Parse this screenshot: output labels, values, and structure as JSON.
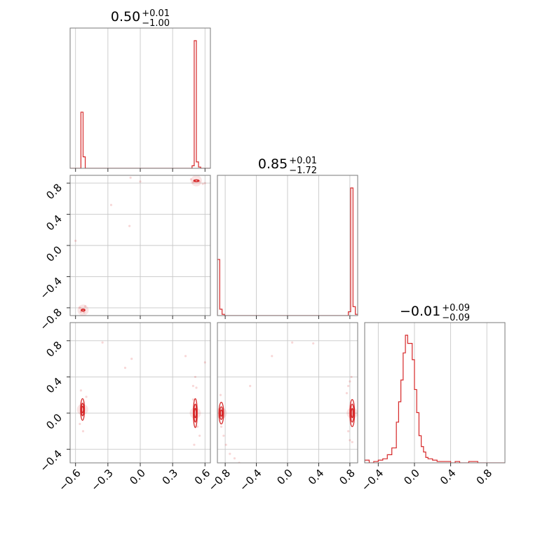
{
  "colors": {
    "series": "#d62728",
    "grid": "#c8c8c8",
    "frame": "#7a7a7a"
  },
  "chart_data": {
    "type": "corner",
    "parameters": [
      {
        "title": {
          "value": "0.50",
          "plus": "+0.01",
          "minus": "−1.00"
        },
        "axis_range": [
          -0.65,
          0.65
        ],
        "ticks": [
          -0.6,
          -0.3,
          0.0,
          0.3,
          0.6
        ],
        "tick_labels": [
          "−0.6",
          "−0.3",
          "0.0",
          "0.3",
          "0.6"
        ],
        "histogram": {
          "edges": [
            -0.57,
            -0.55,
            -0.53,
            -0.51,
            0.46,
            0.48,
            0.5,
            0.52,
            0.54,
            0.56
          ],
          "counts": [
            0,
            0.44,
            0.09,
            0,
            0,
            0.02,
            1.0,
            0.05,
            0.01
          ]
        }
      },
      {
        "title": {
          "value": "0.85",
          "plus": "+0.01",
          "minus": "−1.72"
        },
        "axis_range": [
          -0.9,
          0.9
        ],
        "ticks": [
          -0.8,
          -0.4,
          0.0,
          0.4,
          0.8
        ],
        "tick_labels": [
          "−0.8",
          "−0.4",
          "0.0",
          "0.4",
          "0.8"
        ],
        "histogram": {
          "edges": [
            -0.9,
            -0.87,
            -0.84,
            -0.81,
            -0.78,
            0.78,
            0.81,
            0.84,
            0.87,
            0.9
          ],
          "counts": [
            0.44,
            0.05,
            0.01,
            0,
            0,
            0.03,
            1.0,
            0.07,
            0.01
          ]
        }
      },
      {
        "title": {
          "value": "−0.01",
          "plus": "+0.09",
          "minus": "−0.09"
        },
        "axis_range": [
          -0.55,
          1.0
        ],
        "ticks": [
          -0.4,
          0.0,
          0.4,
          0.8
        ],
        "tick_labels": [
          "−0.4",
          "0.0",
          "0.4",
          "0.8"
        ],
        "y_only_ticks": [
          -0.4,
          0.0,
          0.4,
          0.8
        ],
        "histogram": {
          "edges": [
            -0.55,
            -0.5,
            -0.45,
            -0.4,
            -0.35,
            -0.3,
            -0.25,
            -0.2,
            -0.175,
            -0.15,
            -0.125,
            -0.1,
            -0.075,
            -0.05,
            -0.025,
            0.0,
            0.025,
            0.05,
            0.075,
            0.1,
            0.125,
            0.15,
            0.2,
            0.25,
            0.3,
            0.4,
            0.45,
            0.5,
            0.6,
            0.7,
            1.0
          ],
          "counts": [
            0.02,
            0.0,
            0.01,
            0.02,
            0.03,
            0.06,
            0.11,
            0.3,
            0.45,
            0.61,
            0.81,
            0.94,
            0.88,
            0.88,
            0.76,
            0.54,
            0.37,
            0.2,
            0.12,
            0.08,
            0.04,
            0.03,
            0.02,
            0.01,
            0.01,
            0.0,
            0.01,
            0.0,
            0.01,
            0.0
          ]
        }
      }
    ],
    "pairs": [
      {
        "x_param": 0,
        "y_param": 1,
        "modes": [
          {
            "center": [
              0.52,
              0.83
            ],
            "levels": [
              [
                0.025,
                0.012
              ],
              [
                0.014,
                0.007
              ]
            ]
          },
          {
            "center": [
              -0.53,
              -0.83
            ],
            "levels": [
              [
                0.018,
                0.014
              ],
              [
                0.01,
                0.008
              ]
            ]
          }
        ],
        "scatter": [
          [
            0.55,
            0.82
          ],
          [
            0.58,
            0.79
          ],
          [
            0.47,
            0.85
          ],
          [
            0.49,
            0.81
          ],
          [
            -0.55,
            -0.85
          ],
          [
            -0.52,
            -0.86
          ],
          [
            -0.51,
            -0.78
          ],
          [
            -0.56,
            -0.8
          ],
          [
            -0.27,
            0.52
          ],
          [
            -0.1,
            0.25
          ],
          [
            -0.09,
            0.87
          ],
          [
            -0.6,
            0.06
          ],
          [
            0.0,
            0.82
          ],
          [
            0.6,
            0.8
          ]
        ]
      },
      {
        "x_param": 0,
        "y_param": 2,
        "modes": [
          {
            "center": [
              0.51,
              0.0
            ],
            "levels": [
              [
                0.018,
                0.16
              ],
              [
                0.012,
                0.1
              ],
              [
                0.006,
                0.05
              ]
            ]
          },
          {
            "center": [
              -0.535,
              0.04
            ],
            "levels": [
              [
                0.018,
                0.12
              ],
              [
                0.011,
                0.07
              ],
              [
                0.005,
                0.035
              ]
            ]
          }
        ],
        "scatter": [
          [
            0.51,
            0.4
          ],
          [
            0.49,
            0.3
          ],
          [
            0.55,
            -0.25
          ],
          [
            0.5,
            -0.35
          ],
          [
            0.52,
            0.28
          ],
          [
            -0.55,
            0.25
          ],
          [
            -0.53,
            -0.2
          ],
          [
            -0.5,
            0.18
          ],
          [
            -0.56,
            -0.12
          ],
          [
            -0.14,
            0.5
          ],
          [
            -0.08,
            0.6
          ],
          [
            -0.35,
            0.78
          ],
          [
            0.42,
            0.63
          ],
          [
            0.6,
            0.56
          ],
          [
            0.49,
            0.15
          ],
          [
            0.53,
            -0.15
          ]
        ]
      },
      {
        "x_param": 1,
        "y_param": 2,
        "modes": [
          {
            "center": [
              0.83,
              0.0
            ],
            "levels": [
              [
                0.03,
                0.15
              ],
              [
                0.02,
                0.1
              ],
              [
                0.01,
                0.05
              ]
            ]
          },
          {
            "center": [
              -0.85,
              0.0
            ],
            "levels": [
              [
                0.03,
                0.12
              ],
              [
                0.02,
                0.07
              ],
              [
                0.01,
                0.035
              ]
            ]
          }
        ],
        "scatter": [
          [
            0.8,
            0.35
          ],
          [
            0.78,
            0.3
          ],
          [
            0.76,
            0.22
          ],
          [
            0.78,
            -0.2
          ],
          [
            0.8,
            -0.3
          ],
          [
            0.83,
            -0.32
          ],
          [
            -0.86,
            0.2
          ],
          [
            -0.85,
            -0.15
          ],
          [
            -0.82,
            -0.25
          ],
          [
            -0.79,
            -0.35
          ],
          [
            -0.74,
            -0.45
          ],
          [
            -0.68,
            -0.5
          ],
          [
            -0.62,
            -0.55
          ],
          [
            -0.2,
            0.63
          ],
          [
            0.06,
            0.78
          ],
          [
            0.33,
            0.77
          ],
          [
            -0.48,
            0.3
          ],
          [
            0.82,
            0.4
          ]
        ]
      }
    ]
  }
}
